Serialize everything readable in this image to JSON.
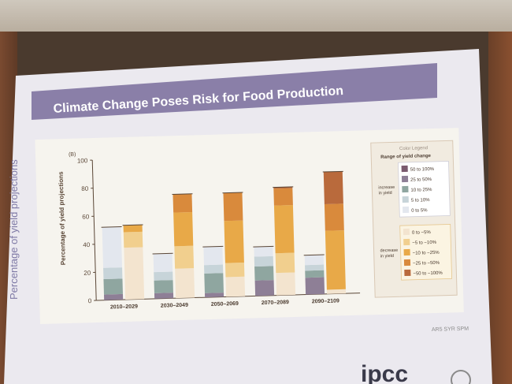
{
  "slide": {
    "title": "Climate Change Poses Risk for Food Production",
    "side_label": "Percentage of yield projections",
    "panel_tag": "(B)",
    "credit": "AR5 SYR SPM",
    "logo_text": "ipcc"
  },
  "chart_data": {
    "type": "bar",
    "stacked": true,
    "title": "",
    "xlabel": "",
    "ylabel": "Percentage of yield projections",
    "ylim": [
      0,
      100
    ],
    "yticks": [
      0,
      20,
      40,
      60,
      80,
      100
    ],
    "grid": false,
    "categories": [
      "2010–2029",
      "2030–2049",
      "2050–2069",
      "2070–2089",
      "2090–2109"
    ],
    "increase": {
      "label": "increase in yield",
      "series": [
        {
          "name": "50 to 100%",
          "color": "#7a5a6e",
          "values": [
            0,
            0,
            0,
            0,
            0
          ]
        },
        {
          "name": "25 to 50%",
          "color": "#8e7f96",
          "values": [
            4,
            4,
            3,
            11,
            12
          ]
        },
        {
          "name": "10 to 25%",
          "color": "#8fa6a0",
          "values": [
            11,
            9,
            14,
            10,
            5
          ]
        },
        {
          "name": "5 to 10%",
          "color": "#c7d4d9",
          "values": [
            8,
            6,
            6,
            7,
            4
          ]
        },
        {
          "name": "0 to 5%",
          "color": "#e3e7ee",
          "values": [
            29,
            13,
            13,
            7,
            7
          ]
        }
      ]
    },
    "decrease": {
      "label": "decrease in yield",
      "series": [
        {
          "name": "0 to −5%",
          "color": "#f3e4cf",
          "values": [
            37,
            21,
            14,
            16,
            3
          ]
        },
        {
          "name": "−5 to −10%",
          "color": "#f1cf8e",
          "values": [
            11,
            16,
            10,
            14,
            0
          ]
        },
        {
          "name": "−10 to −25%",
          "color": "#e8a948",
          "values": [
            5,
            24,
            30,
            34,
            42
          ]
        },
        {
          "name": "−25 to −50%",
          "color": "#d98a3c",
          "values": [
            0,
            13,
            20,
            12,
            19
          ]
        },
        {
          "name": "−50 to −100%",
          "color": "#b96a3c",
          "values": [
            0,
            0,
            0,
            1,
            23
          ]
        }
      ]
    },
    "legend": {
      "title": "Color Legend",
      "subtitle": "Range of yield change",
      "placement": "right"
    }
  }
}
